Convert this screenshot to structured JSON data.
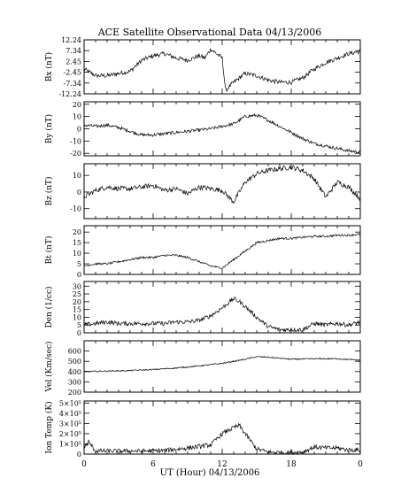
{
  "title": "ACE Satellite Observational Data   04/13/2006",
  "xlabel": "UT (Hour)   04/13/2006",
  "x_ticks": [
    "0",
    "6",
    "12",
    "18",
    "0"
  ],
  "chart_data": [
    {
      "type": "line",
      "ylabel": "Bx (nT)",
      "ylim": [
        -12.24,
        12.24
      ],
      "y_ticks": [
        12.24,
        7.34,
        2.45,
        -2.45,
        -7.34,
        -12.24
      ],
      "y_tick_labels": [
        "12.24",
        "7.34",
        "2.45",
        "-2.45",
        "-7.34",
        "-12.24"
      ],
      "series": [
        {
          "x": [
            0,
            1,
            2,
            3,
            4,
            5,
            6,
            7,
            8,
            9,
            10,
            10.5,
            11,
            11.5,
            12,
            12.3,
            12.6,
            13,
            13.5,
            14,
            15,
            16,
            17,
            18,
            19,
            20,
            21,
            22,
            23,
            24
          ],
          "y": [
            -1,
            -4,
            -4,
            -3,
            -2,
            3,
            5,
            6,
            4,
            3,
            5,
            4,
            8,
            6,
            4,
            -11,
            -9,
            -7,
            -5,
            -3,
            -4,
            -6,
            -7,
            -7,
            -5,
            -1,
            2,
            4,
            6,
            7
          ],
          "noise": 1.0
        }
      ]
    },
    {
      "type": "line",
      "ylabel": "By (nT)",
      "ylim": [
        -22,
        22
      ],
      "y_ticks": [
        20,
        10,
        0,
        -10,
        -20
      ],
      "y_tick_labels": [
        "20",
        "10",
        "0",
        "-10",
        "-20"
      ],
      "series": [
        {
          "x": [
            0,
            1,
            2,
            3,
            4,
            5,
            6,
            7,
            8,
            9,
            10,
            11,
            12,
            13,
            14,
            15,
            16,
            17,
            18,
            19,
            20,
            21,
            22,
            23,
            24
          ],
          "y": [
            3,
            2,
            3,
            1,
            -2,
            -5,
            -5,
            -4,
            -3,
            -2,
            -1,
            0,
            2,
            4,
            10,
            11,
            7,
            2,
            -3,
            -8,
            -12,
            -14,
            -16,
            -18,
            -19
          ],
          "noise": 1.3
        }
      ]
    },
    {
      "type": "line",
      "ylabel": "Bz (nT)",
      "ylim": [
        -16,
        17
      ],
      "y_ticks": [
        10,
        0,
        -10
      ],
      "y_tick_labels": [
        "10",
        "0",
        "-10"
      ],
      "series": [
        {
          "x": [
            0,
            1,
            2,
            3,
            4,
            5,
            6,
            7,
            8,
            9,
            10,
            11,
            12,
            13,
            14,
            15,
            16,
            17,
            18,
            19,
            20,
            21,
            22,
            23,
            24
          ],
          "y": [
            -3,
            1,
            3,
            2,
            2,
            3,
            4,
            1,
            2,
            -1,
            3,
            2,
            1,
            -6,
            6,
            11,
            13,
            14,
            15,
            13,
            8,
            -3,
            6,
            3,
            -4
          ],
          "noise": 1.5
        }
      ]
    },
    {
      "type": "line",
      "ylabel": "Bt (nT)",
      "ylim": [
        0,
        23
      ],
      "y_ticks": [
        20,
        15,
        10,
        5,
        0
      ],
      "y_tick_labels": [
        "20",
        "15",
        "10",
        "5",
        "0"
      ],
      "series": [
        {
          "x": [
            0,
            1,
            2,
            3,
            4,
            5,
            6,
            7,
            8,
            9,
            10,
            11,
            12,
            13,
            14,
            15,
            16,
            17,
            18,
            19,
            20,
            21,
            22,
            23,
            24
          ],
          "y": [
            4,
            5,
            5,
            6,
            7,
            8,
            8,
            9,
            9,
            8,
            6,
            4,
            3,
            7,
            11,
            15,
            16,
            17,
            17,
            17.5,
            18,
            18,
            18.5,
            18.5,
            19
          ],
          "noise": 0.5
        }
      ]
    },
    {
      "type": "line",
      "ylabel": "Den (1/cc)",
      "ylim": [
        0,
        33
      ],
      "y_ticks": [
        30,
        25,
        20,
        15,
        10,
        5,
        0
      ],
      "y_tick_labels": [
        "30",
        "25",
        "20",
        "15",
        "10",
        "5",
        "0"
      ],
      "series": [
        {
          "x": [
            0,
            1,
            2,
            3,
            4,
            5,
            6,
            7,
            8,
            9,
            10,
            11,
            12,
            13,
            13.5,
            14,
            15,
            16,
            17,
            18,
            19,
            20,
            21,
            22,
            23,
            24
          ],
          "y": [
            5,
            6,
            7,
            6,
            6,
            6,
            6,
            6,
            7,
            7,
            8,
            11,
            16,
            22,
            20,
            17,
            10,
            4,
            2,
            2,
            2,
            6,
            5,
            6,
            5,
            7
          ],
          "noise": 1.4
        }
      ]
    },
    {
      "type": "line",
      "ylabel": "Vel (Km/sec)",
      "ylim": [
        200,
        700
      ],
      "y_ticks": [
        600,
        500,
        400,
        300,
        200
      ],
      "y_tick_labels": [
        "600",
        "500",
        "400",
        "300",
        "200"
      ],
      "series": [
        {
          "x": [
            0,
            2,
            4,
            6,
            8,
            10,
            12,
            14,
            15,
            16,
            18,
            20,
            22,
            24
          ],
          "y": [
            400,
            405,
            410,
            420,
            435,
            455,
            480,
            520,
            545,
            540,
            520,
            525,
            525,
            510
          ],
          "noise": 6
        }
      ]
    },
    {
      "type": "line",
      "ylabel": "Ion Temp (K)",
      "ylim": [
        0,
        520000
      ],
      "y_ticks": [
        500000,
        400000,
        300000,
        200000,
        100000,
        0
      ],
      "y_tick_labels": [
        "5×10⁵",
        "4×10⁵",
        "3×10⁵",
        "2×10⁵",
        "1×10⁵",
        "0"
      ],
      "series": [
        {
          "x": [
            0,
            0.4,
            1,
            3,
            5,
            7,
            9,
            11,
            12,
            12.5,
            13,
            13.5,
            14,
            15,
            16,
            17,
            18,
            19,
            20,
            21,
            22,
            23,
            24
          ],
          "y": [
            60000,
            120000,
            30000,
            30000,
            30000,
            35000,
            60000,
            90000,
            200000,
            230000,
            260000,
            280000,
            200000,
            50000,
            20000,
            15000,
            15000,
            20000,
            70000,
            60000,
            60000,
            40000,
            40000
          ],
          "noise": 22000
        }
      ]
    }
  ]
}
